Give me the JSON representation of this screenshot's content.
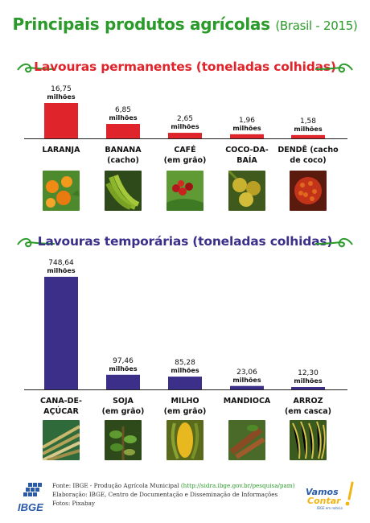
{
  "title": {
    "main": "Principais produtos agrícolas",
    "sub": "(Brasil - 2015)"
  },
  "colors": {
    "title": "#2a9a2a",
    "permanent": "#e0242b",
    "temporary": "#3b2f8a",
    "swirl": "#2a9a2a"
  },
  "sections": [
    {
      "title": "Lavouras permanentes (toneladas colhidas)"
    },
    {
      "title": "Lavouras temporárias (toneladas colhidas)"
    }
  ],
  "chart_data": [
    {
      "type": "bar",
      "title": "Lavouras permanentes (toneladas colhidas)",
      "unit": "milhões",
      "categories": [
        [
          "LARANJA"
        ],
        [
          "BANANA",
          "(cacho)"
        ],
        [
          "CAFÉ",
          "(em grão)"
        ],
        [
          "COCO-DA-",
          "BAÍA"
        ],
        [
          "DENDÊ (cacho",
          "de coco)"
        ]
      ],
      "values": [
        16.75,
        6.85,
        2.65,
        1.96,
        1.58
      ],
      "labels": [
        "16,75",
        "6,85",
        "2,65",
        "1,96",
        "1,58"
      ],
      "color": "#e0242b",
      "photos": [
        "oranges",
        "bananas",
        "coffee-cherries",
        "coconuts",
        "oil-palm-fruit"
      ]
    },
    {
      "type": "bar",
      "title": "Lavouras temporárias (toneladas colhidas)",
      "unit": "milhões",
      "categories": [
        [
          "CANA-DE-",
          "AÇÚCAR"
        ],
        [
          "SOJA",
          "(em grão)"
        ],
        [
          "MILHO",
          "(em grão)"
        ],
        [
          "MANDIOCA"
        ],
        [
          "ARROZ",
          "(em casca)"
        ]
      ],
      "values": [
        748.64,
        97.46,
        85.28,
        23.06,
        12.3
      ],
      "labels": [
        "748,64",
        "97,46",
        "85,28",
        "23,06",
        "12,30"
      ],
      "color": "#3b2f8a",
      "photos": [
        "sugarcane",
        "soybean-plant",
        "corn",
        "cassava",
        "rice"
      ]
    }
  ],
  "footer": {
    "logo": "IBGE",
    "source_prefix": "Fonte: IBGE - Produção Agrícola Municipal ",
    "source_link": "(http://sidra.ibge.gov.br/pesquisa/pam)",
    "elaboration": "Elaboração: IBGE, Centro de Documentação e Disseminação de Informações",
    "photos": "Fotos: Pixabay",
    "vamos_contar": "Vamos Contar",
    "vamos_tagline": "IBGE em noticia"
  }
}
